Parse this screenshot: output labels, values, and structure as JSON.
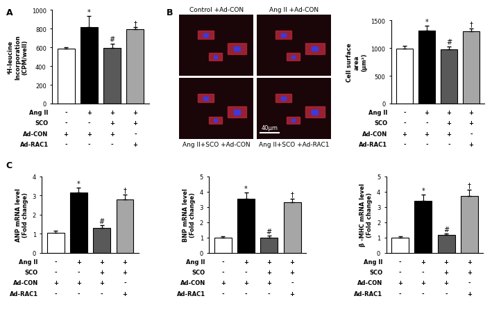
{
  "panel_labels": [
    "A",
    "B",
    "C"
  ],
  "conditions": {
    "rows": [
      "Ang II",
      "SCO",
      "Ad-CON",
      "Ad-RAC1"
    ],
    "marks": [
      [
        "-",
        "+",
        "+",
        "+"
      ],
      [
        "-",
        "-",
        "+",
        "+"
      ],
      [
        "+",
        "+",
        "+",
        "-"
      ],
      [
        "-",
        "-",
        "-",
        "+"
      ]
    ]
  },
  "images": {
    "labels": [
      "Control +Ad-CON",
      "Ang II +Ad-CON",
      "Ang II+SCO +Ad-CON",
      "Ang II+SCO +Ad-RAC1"
    ],
    "scale_bar": "40μm"
  },
  "chart_data": [
    {
      "type": "bar",
      "y_label": "³H-leucine\nIncorporation\n(CPM/well)",
      "categories": [
        null,
        null,
        null,
        null
      ],
      "values": [
        585,
        815,
        595,
        790
      ],
      "errors": [
        15,
        120,
        45,
        25
      ],
      "ylim": [
        0,
        1000
      ],
      "yticks": [
        0,
        200,
        400,
        600,
        800,
        1000
      ],
      "colors": [
        "#ffffff",
        "#000000",
        "#595959",
        "#a6a6a6"
      ],
      "annotations": [
        null,
        "*",
        "#",
        "†"
      ]
    },
    {
      "type": "bar",
      "y_label": "Cell surface\narea\n(μm²)",
      "categories": [
        null,
        null,
        null,
        null
      ],
      "values": [
        985,
        1320,
        980,
        1305
      ],
      "errors": [
        50,
        80,
        50,
        55
      ],
      "ylim": [
        0,
        1500
      ],
      "yticks": [
        0,
        500,
        1000,
        1500
      ],
      "colors": [
        "#ffffff",
        "#000000",
        "#595959",
        "#a6a6a6"
      ],
      "annotations": [
        null,
        "*",
        "#",
        "†"
      ]
    },
    {
      "type": "bar",
      "y_label": "ANP mRNA level\n(Fold change)",
      "categories": [
        null,
        null,
        null,
        null
      ],
      "values": [
        1.05,
        3.15,
        1.3,
        2.8
      ],
      "errors": [
        0.12,
        0.25,
        0.15,
        0.25
      ],
      "ylim": [
        0,
        4
      ],
      "yticks": [
        0,
        1,
        2,
        3,
        4
      ],
      "colors": [
        "#ffffff",
        "#000000",
        "#595959",
        "#a6a6a6"
      ],
      "annotations": [
        null,
        "*",
        "#",
        "†"
      ]
    },
    {
      "type": "bar",
      "y_label": "BNP mRNA level\n(Fold change)",
      "categories": [
        null,
        null,
        null,
        null
      ],
      "values": [
        1.0,
        3.55,
        0.98,
        3.3
      ],
      "errors": [
        0.1,
        0.4,
        0.15,
        0.25
      ],
      "ylim": [
        0,
        5
      ],
      "yticks": [
        0,
        1,
        2,
        3,
        4,
        5
      ],
      "colors": [
        "#ffffff",
        "#000000",
        "#595959",
        "#a6a6a6"
      ],
      "annotations": [
        null,
        "*",
        "#",
        "†"
      ]
    },
    {
      "type": "bar",
      "y_label": "β -MHC mRNA level\n(Fold change)",
      "categories": [
        null,
        null,
        null,
        null
      ],
      "values": [
        1.0,
        3.4,
        1.15,
        3.7
      ],
      "errors": [
        0.08,
        0.4,
        0.1,
        0.45
      ],
      "ylim": [
        0,
        5
      ],
      "yticks": [
        0,
        1,
        2,
        3,
        4,
        5
      ],
      "colors": [
        "#ffffff",
        "#000000",
        "#595959",
        "#a6a6a6"
      ],
      "annotations": [
        null,
        "*",
        "#",
        "†"
      ]
    }
  ]
}
